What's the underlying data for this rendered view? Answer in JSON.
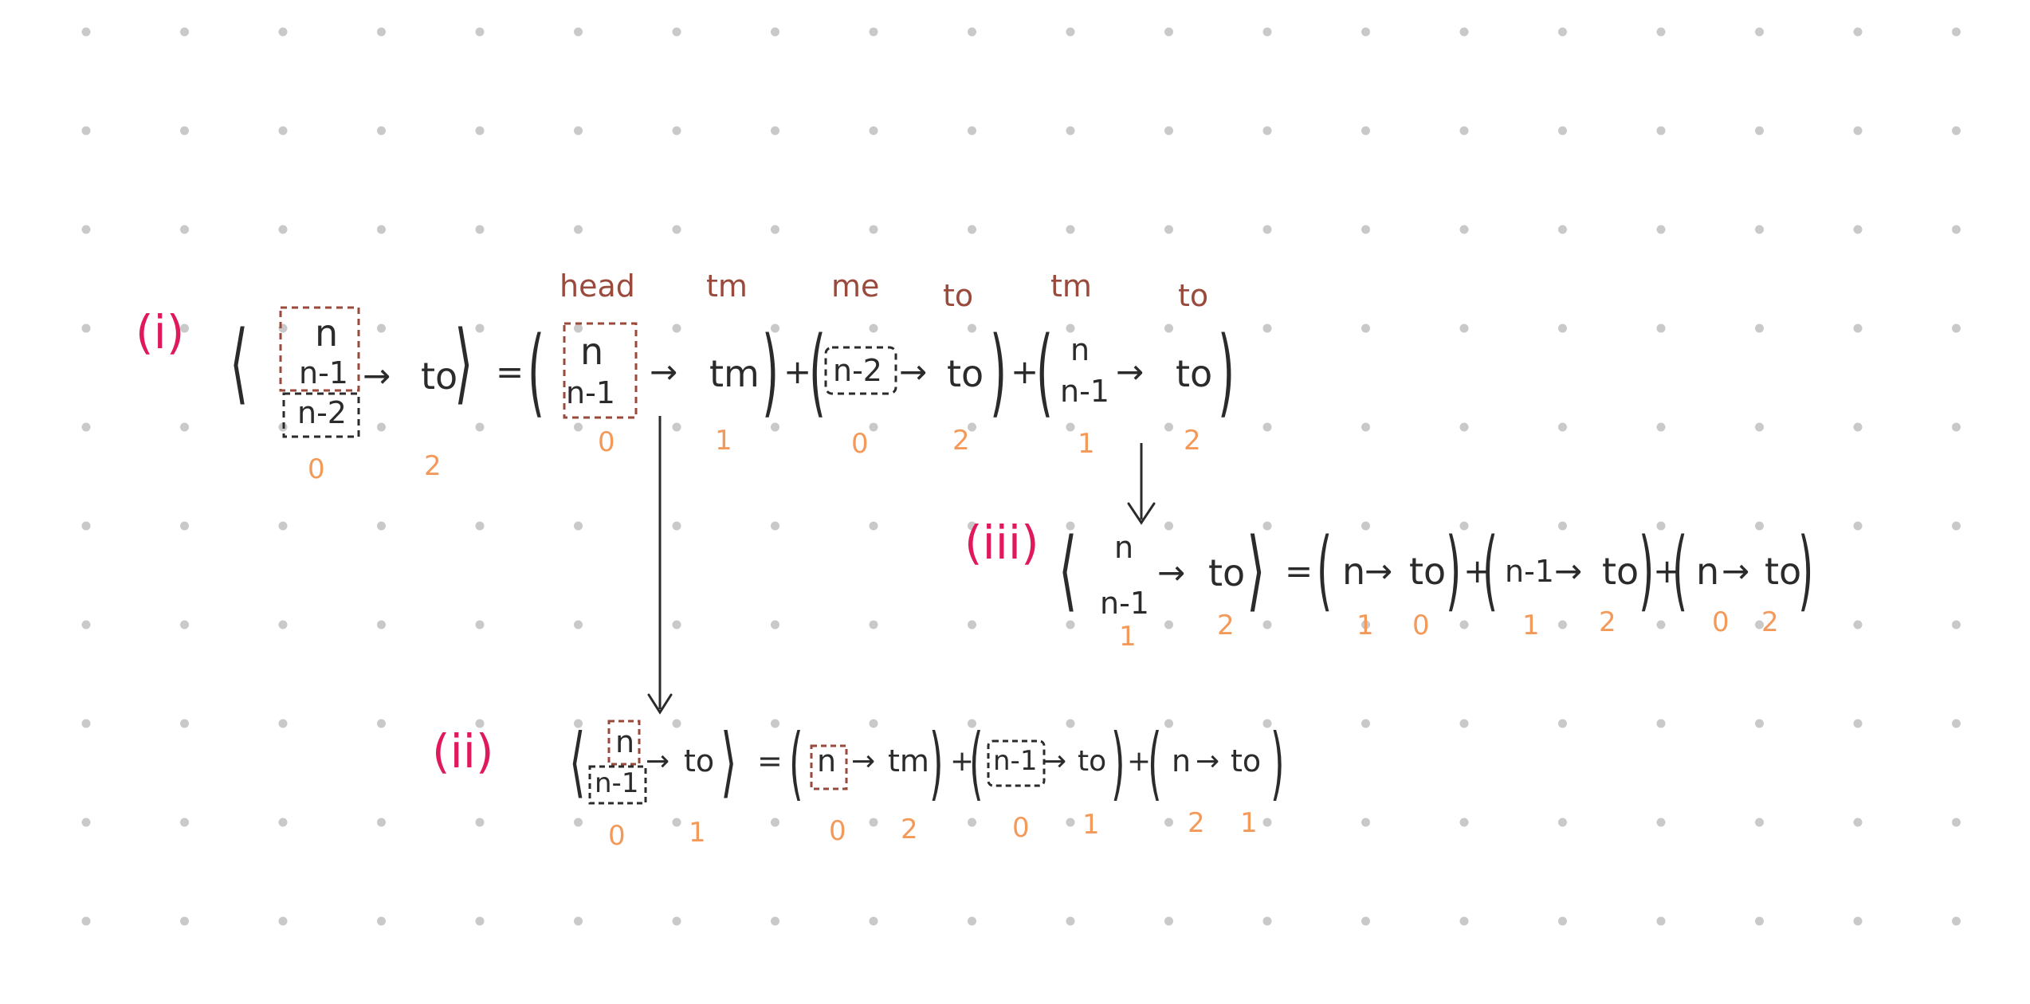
{
  "colors": {
    "background": "#ffffff",
    "dot": "#c9c9c9",
    "ink": "#2b2b2b",
    "label_pink": "#e0185d",
    "annotation_brown": "#9a4a3c",
    "index_orange": "#f39a5b"
  },
  "eq_i": {
    "label": "(i)",
    "lhs": {
      "disks": [
        "n",
        "n-1",
        "n-2"
      ],
      "arrow": "→",
      "target": "to",
      "from_index": "0",
      "to_index": "2"
    },
    "equals": "=",
    "terms": [
      {
        "top_label": "head",
        "disks": [
          "n",
          "n-1"
        ],
        "arrow": "→",
        "target": "tm",
        "target_label": "tm",
        "from_index": "0",
        "to_index": "1"
      },
      {
        "top_label": "me",
        "disks": [
          "n-2"
        ],
        "arrow": "→",
        "target": "to",
        "target_label": "to",
        "from_index": "0",
        "to_index": "2"
      },
      {
        "top_label": "tm",
        "disks": [
          "n",
          "n-1"
        ],
        "arrow": "→",
        "target": "to",
        "target_label": "to",
        "from_index": "1",
        "to_index": "2"
      }
    ],
    "plus": [
      "+",
      "+"
    ]
  },
  "eq_ii": {
    "label": "(ii)",
    "lhs": {
      "disks": [
        "n",
        "n-1"
      ],
      "arrow": "→",
      "target": "to",
      "from_index": "0",
      "to_index": "1"
    },
    "equals": "=",
    "terms": [
      {
        "disk": "n",
        "arrow": "→",
        "target": "tm",
        "from_index": "0",
        "to_index": "2"
      },
      {
        "disk": "n-1",
        "arrow": "→",
        "target": "to",
        "from_index": "0",
        "to_index": "1"
      },
      {
        "disk": "n",
        "arrow": "→",
        "target": "to",
        "from_index": "2",
        "to_index": "1"
      }
    ],
    "plus": [
      "+",
      "+"
    ]
  },
  "eq_iii": {
    "label": "(iii)",
    "lhs": {
      "disks": [
        "n",
        "n-1"
      ],
      "arrow": "→",
      "target": "to",
      "from_index": "1",
      "to_index": "2"
    },
    "equals": "=",
    "terms": [
      {
        "disk": "n",
        "arrow": "→",
        "target": "to",
        "from_index": "1",
        "to_index": "0"
      },
      {
        "disk": "n-1",
        "arrow": "→",
        "target": "to",
        "from_index": "1",
        "to_index": "2"
      },
      {
        "disk": "n",
        "arrow": "→",
        "target": "to",
        "from_index": "0",
        "to_index": "2"
      }
    ],
    "plus": [
      "+",
      "+"
    ]
  }
}
